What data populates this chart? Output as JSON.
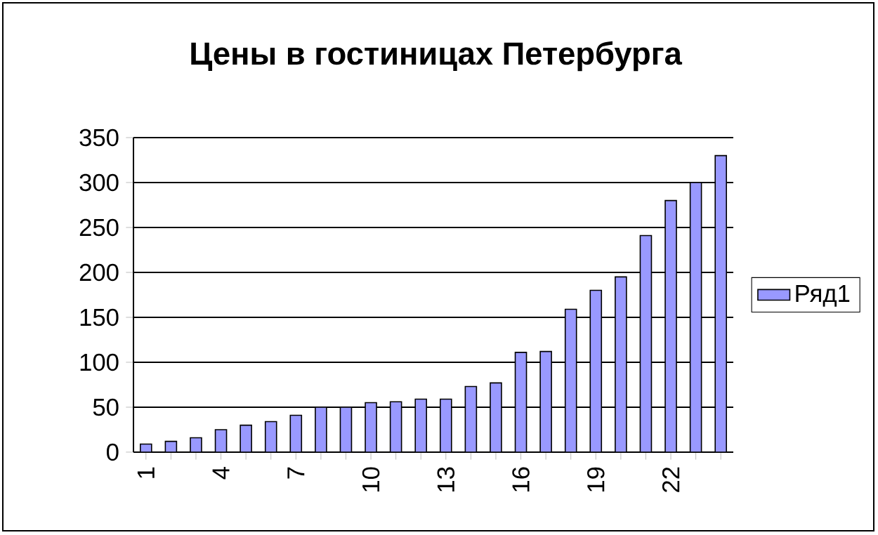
{
  "chart_data": {
    "type": "bar",
    "title": "Цены в гостиницах Петербурга",
    "categories": [
      "1",
      null,
      null,
      "4",
      null,
      null,
      "7",
      null,
      null,
      "10",
      null,
      null,
      "13",
      null,
      null,
      "16",
      null,
      null,
      "19",
      null,
      null,
      "22",
      null,
      null
    ],
    "series": [
      {
        "name": "Ряд1",
        "color": "#9999ff",
        "values": [
          9,
          12,
          16,
          25,
          30,
          34,
          41,
          50,
          50,
          55,
          56,
          59,
          59,
          73,
          77,
          111,
          112,
          159,
          180,
          195,
          241,
          280,
          300,
          330
        ]
      }
    ],
    "ylim": [
      0,
      350
    ],
    "yticks": [
      0,
      50,
      100,
      150,
      200,
      250,
      300,
      350
    ],
    "grid": "y",
    "legend": "right"
  }
}
